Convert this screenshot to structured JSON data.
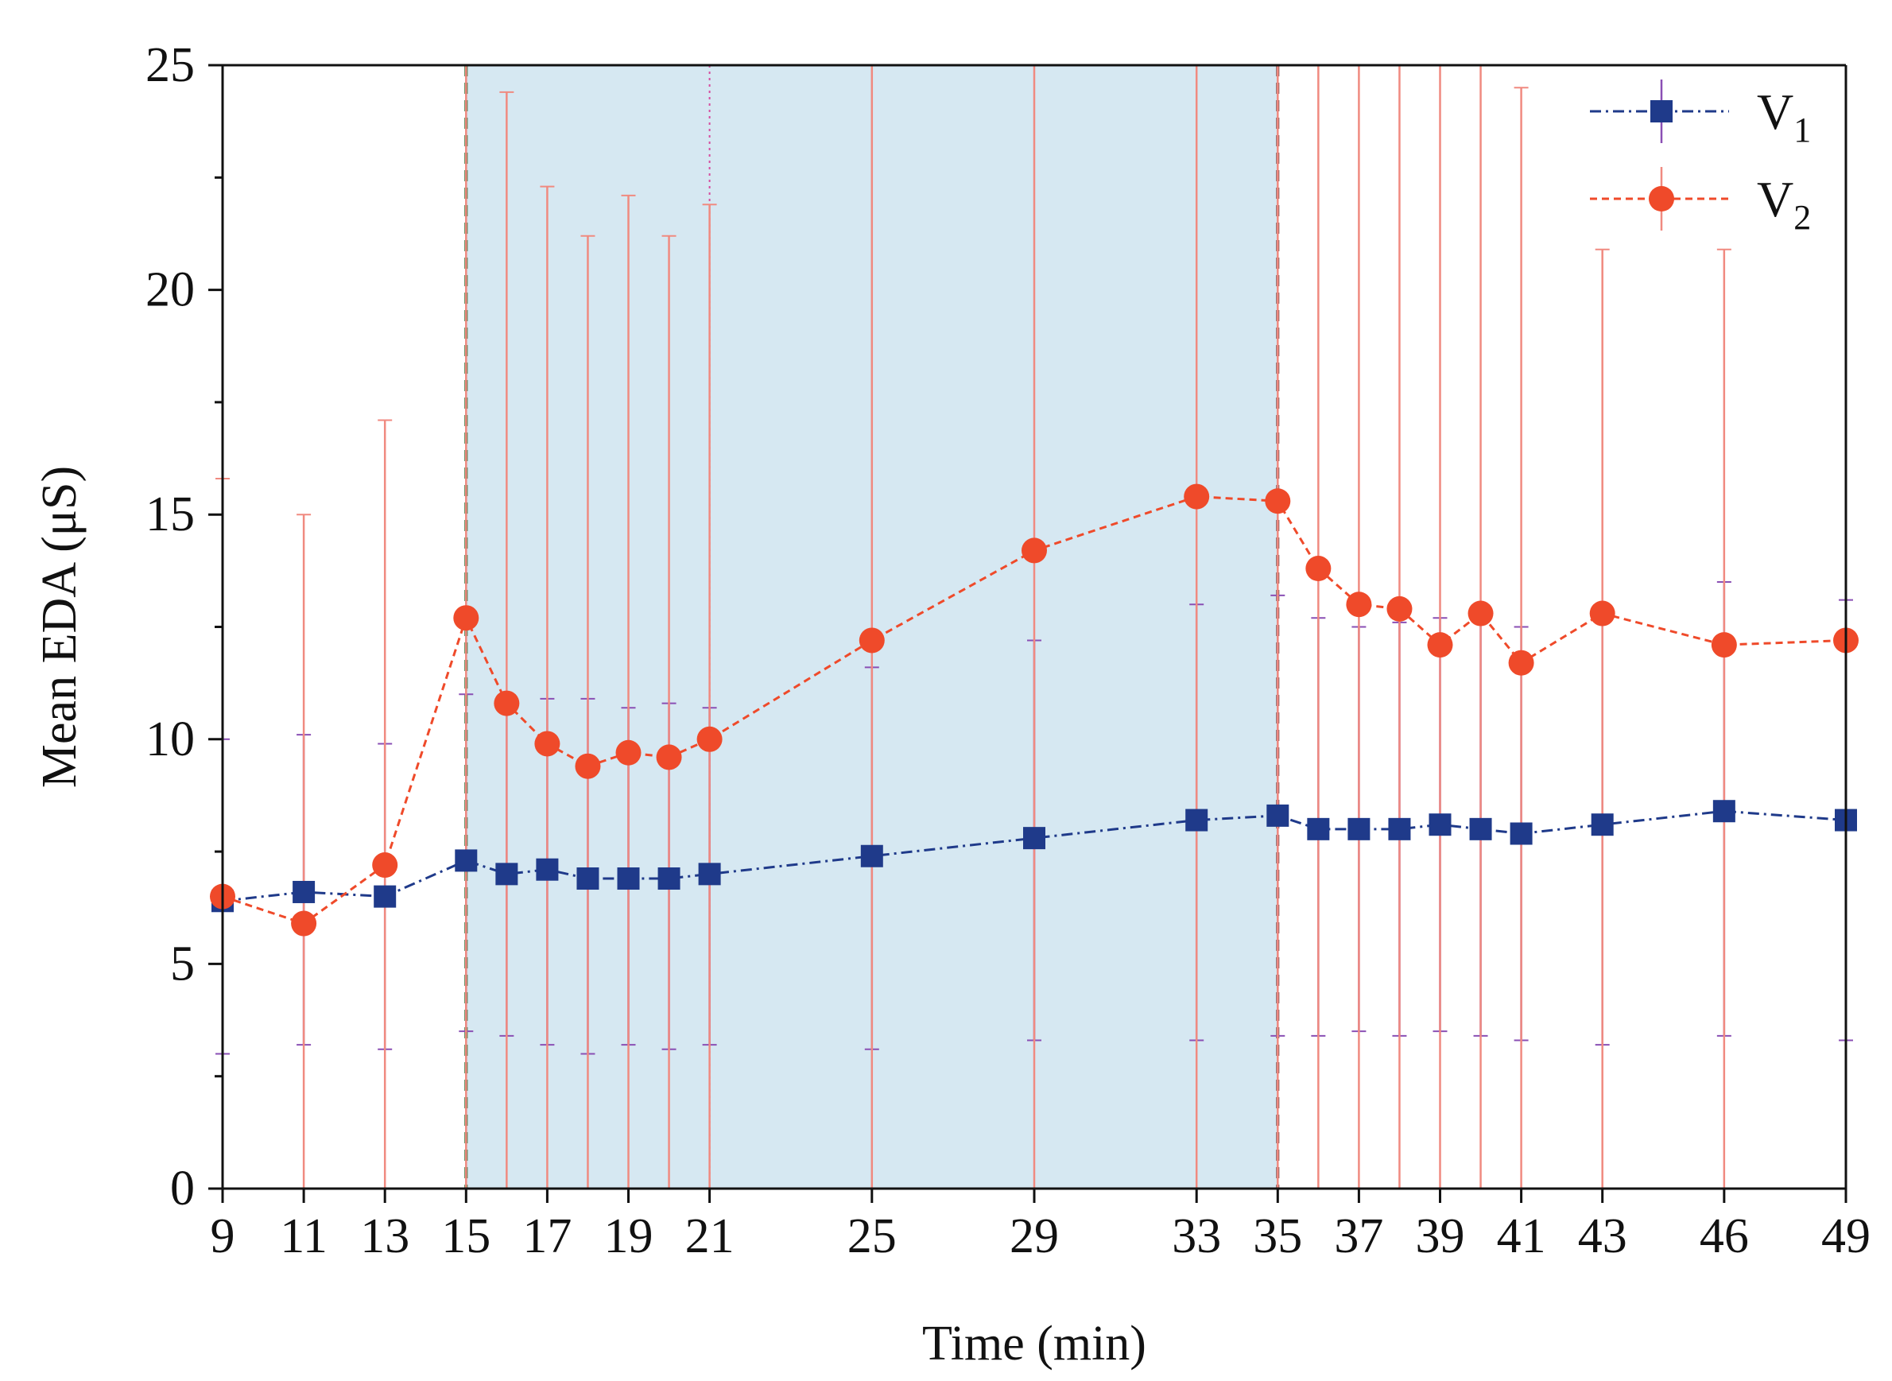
{
  "chart_data": {
    "type": "line",
    "title": "",
    "xlabel": "Time (min)",
    "ylabel": "Mean EDA (μS)",
    "ylim": [
      0,
      25
    ],
    "y_ticks": [
      0,
      5,
      10,
      15,
      20,
      25
    ],
    "x_ticks": [
      9,
      11,
      13,
      15,
      17,
      19,
      21,
      25,
      29,
      33,
      35,
      37,
      39,
      41,
      43,
      46,
      49
    ],
    "xlim": [
      9,
      49
    ],
    "shaded_region": {
      "x_start": 15,
      "x_end": 35,
      "color": "#d6e8f2"
    },
    "reference_lines": [
      {
        "x": 15,
        "style": "dashed",
        "color": "#2e6b2e"
      },
      {
        "x": 21,
        "style": "dotted",
        "color": "#d64ea0"
      },
      {
        "x": 35,
        "style": "dashed",
        "color": "#7a4a4a"
      }
    ],
    "legend_position": "top-right",
    "series": [
      {
        "name": "V",
        "subscript": "1",
        "color": "#1f3a8a",
        "errorbar_color": "#8a4fb4",
        "marker": "square",
        "line_style": "dash-dot",
        "x": [
          9,
          11,
          13,
          15,
          16,
          17,
          18,
          19,
          20,
          21,
          25,
          29,
          33,
          35,
          36,
          37,
          38,
          39,
          40,
          41,
          43,
          46,
          49
        ],
        "values": [
          6.4,
          6.6,
          6.5,
          7.3,
          7.0,
          7.1,
          6.9,
          6.9,
          6.9,
          7.0,
          7.4,
          7.8,
          8.2,
          8.3,
          8.0,
          8.0,
          8.0,
          8.1,
          8.0,
          7.9,
          8.1,
          8.4,
          8.2
        ],
        "err_low": [
          3.0,
          3.2,
          3.1,
          3.5,
          3.4,
          3.2,
          3.0,
          3.2,
          3.1,
          3.2,
          3.1,
          3.3,
          3.3,
          3.4,
          3.4,
          3.5,
          3.4,
          3.5,
          3.4,
          3.3,
          3.2,
          3.4,
          3.3
        ],
        "err_high": [
          10.0,
          10.1,
          9.9,
          11.0,
          10.7,
          10.9,
          10.9,
          10.7,
          10.8,
          10.7,
          11.6,
          12.2,
          13.0,
          13.2,
          12.7,
          12.5,
          12.6,
          12.7,
          12.6,
          12.5,
          12.9,
          13.5,
          13.1
        ]
      },
      {
        "name": "V",
        "subscript": "2",
        "color": "#ef4a2a",
        "errorbar_color": "#f08a80",
        "marker": "circle",
        "line_style": "dashed",
        "x": [
          9,
          11,
          13,
          15,
          16,
          17,
          18,
          19,
          20,
          21,
          25,
          29,
          33,
          35,
          36,
          37,
          38,
          39,
          40,
          41,
          43,
          46,
          49
        ],
        "values": [
          6.5,
          5.9,
          7.2,
          12.7,
          10.8,
          9.9,
          9.4,
          9.7,
          9.6,
          10.0,
          12.2,
          14.2,
          15.4,
          15.3,
          13.8,
          13.0,
          12.9,
          12.1,
          12.8,
          11.7,
          12.8,
          12.1,
          12.2
        ],
        "err_low": [
          0,
          0,
          0,
          0,
          0,
          0,
          0,
          0,
          0,
          0,
          0,
          0,
          0,
          0,
          0,
          0,
          0,
          0,
          0,
          0,
          0,
          0,
          0
        ],
        "err_high": [
          15.8,
          15.0,
          17.1,
          25,
          24.4,
          22.3,
          21.2,
          22.1,
          21.2,
          21.9,
          25,
          25,
          25,
          25,
          25,
          25,
          25,
          25,
          25,
          24.5,
          20.9,
          20.9,
          25
        ]
      }
    ]
  }
}
